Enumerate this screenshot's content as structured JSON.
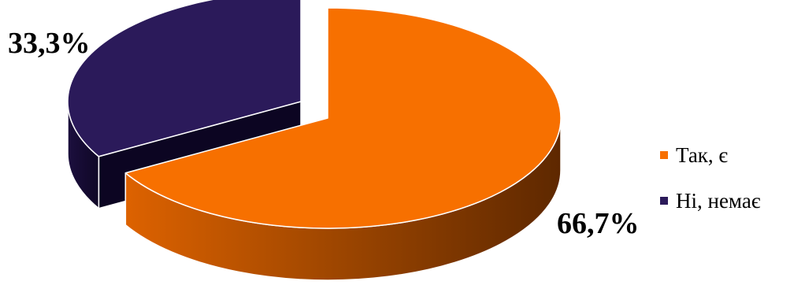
{
  "chart_data": {
    "type": "pie",
    "style": "3d-exploded",
    "categories": [
      "Так, є",
      "Ні, немає"
    ],
    "values": [
      66.7,
      33.3
    ],
    "data_labels": [
      "66,7%",
      "33,3%"
    ],
    "colors": [
      "#f77000",
      "#2b1a5a"
    ],
    "legend": "right",
    "title": ""
  }
}
